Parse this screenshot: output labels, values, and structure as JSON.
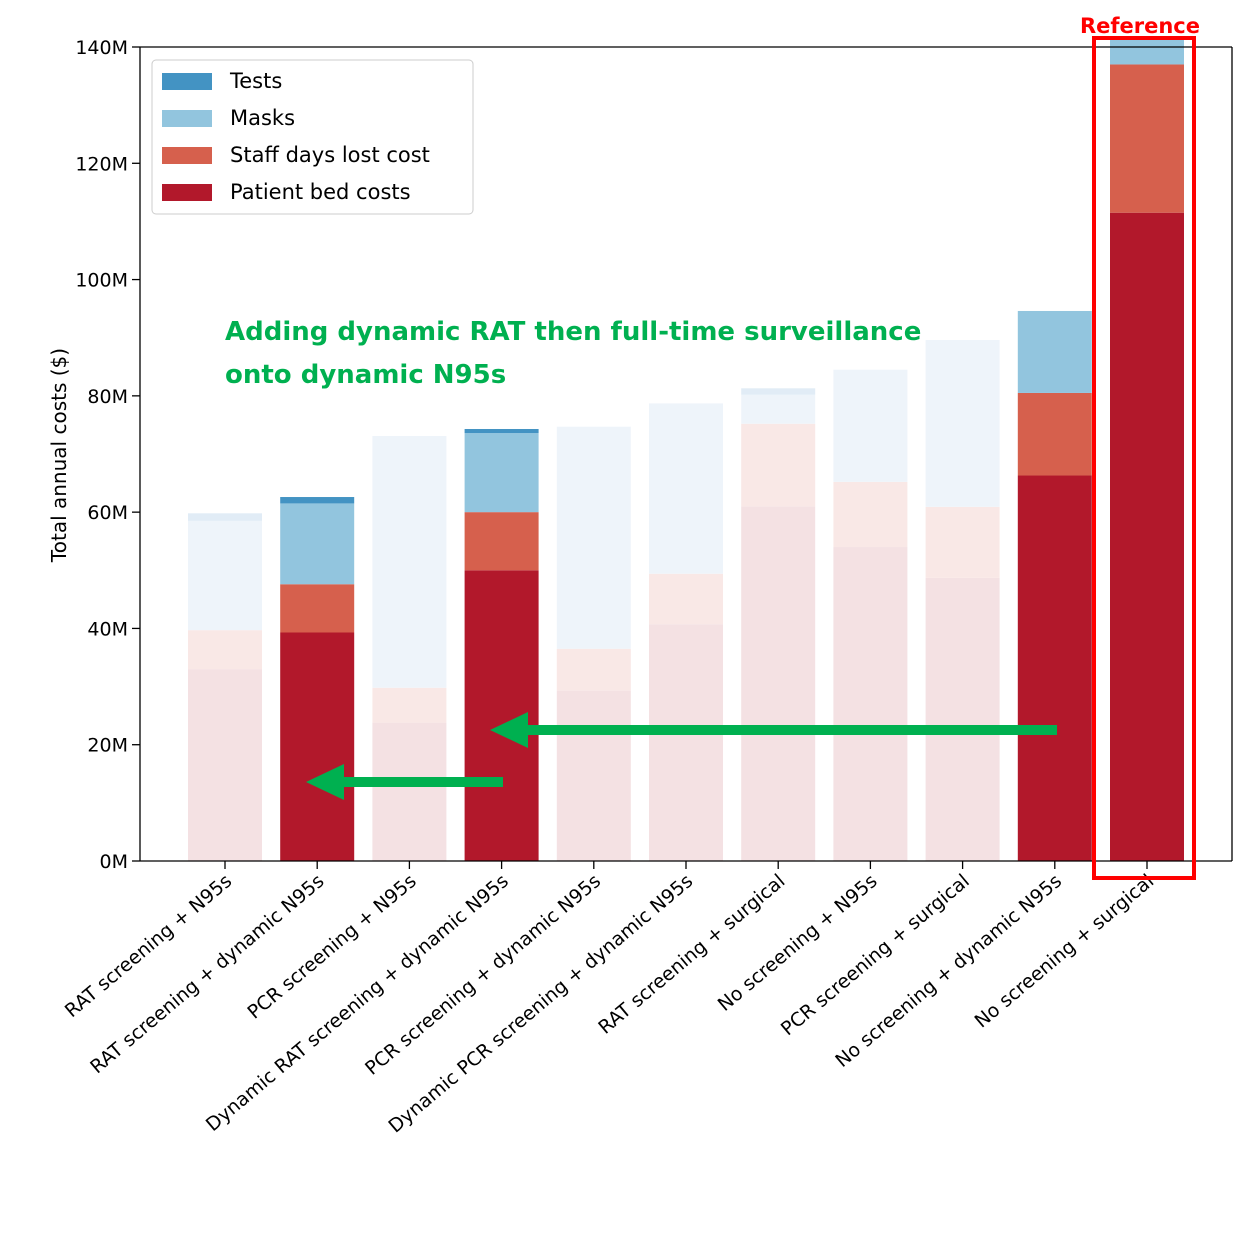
{
  "chart_data": {
    "type": "bar",
    "stacked": true,
    "ylabel": "Total annual costs ($)",
    "ylim": [
      0,
      140000000
    ],
    "yticks": [
      0,
      20000000,
      40000000,
      60000000,
      80000000,
      100000000,
      120000000,
      140000000
    ],
    "ytick_labels": [
      "0M",
      "20M",
      "40M",
      "60M",
      "80M",
      "100M",
      "120M",
      "140M"
    ],
    "legend_placement": "top-left",
    "categories": [
      "RAT screening + N95s",
      "RAT screening + dynamic N95s",
      "PCR screening + N95s",
      "Dynamic RAT screening + dynamic N95s",
      "PCR screening + dynamic N95s",
      "Dynamic PCR screening + dynamic N95s",
      "RAT screening + surgical",
      "No screening + N95s",
      "PCR screening + surgical",
      "No screening + dynamic N95s",
      "No screening + surgical"
    ],
    "highlighted": [
      false,
      true,
      false,
      true,
      false,
      false,
      false,
      false,
      false,
      true,
      true
    ],
    "series": [
      {
        "name": "Patient bed costs",
        "color": "#b2182b",
        "faded_color": "#f4e1e3",
        "values": [
          33000000,
          39300000,
          23800000,
          50000000,
          29300000,
          40700000,
          61000000,
          54000000,
          48700000,
          66300000,
          111500000
        ]
      },
      {
        "name": "Staff days lost cost",
        "color": "#d6604d",
        "faded_color": "#f9e8e6",
        "values": [
          6700000,
          8300000,
          6000000,
          10000000,
          7200000,
          8700000,
          14200000,
          11200000,
          12200000,
          14200000,
          25500000
        ]
      },
      {
        "name": "Masks",
        "color": "#92c5de",
        "faded_color_a": "#eef4fa",
        "faded_color_b": "#e4eef7",
        "values": [
          18800000,
          13900000,
          43300000,
          13600000,
          38200000,
          29300000,
          5000000,
          19300000,
          28700000,
          14100000,
          4700000
        ]
      },
      {
        "name": "Tests",
        "color": "#4393c3",
        "faded_color": "#e1ecf6",
        "values": [
          1300000,
          1100000,
          0,
          700000,
          0,
          0,
          1100000,
          0,
          0,
          0,
          0
        ]
      }
    ],
    "legend_order": [
      "Tests",
      "Masks",
      "Staff days lost cost",
      "Patient bed costs"
    ]
  },
  "annotations": {
    "reference_label": "Reference",
    "reference_color": "#ff0000",
    "callout_line1": "Adding dynamic RAT then full-time surveillance",
    "callout_line2": "onto dynamic N95s",
    "callout_color": "#00b050",
    "arrow_color": "#00b050"
  }
}
